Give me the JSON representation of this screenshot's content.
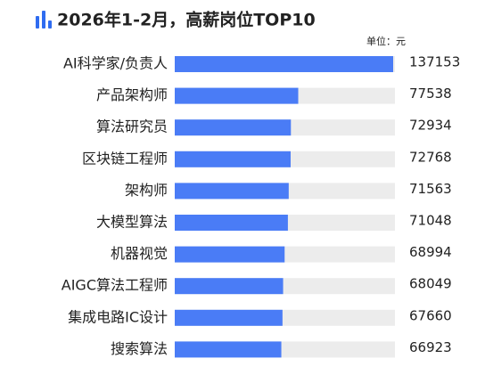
{
  "chart_data": {
    "type": "bar",
    "orientation": "horizontal",
    "title": "2026年1-2月，高薪岗位TOP10",
    "unit_label": "单位：元",
    "categories": [
      "AI科学家/负责人",
      "产品架构师",
      "算法研究员",
      "区块链工程师",
      "架构师",
      "大模型算法",
      "机器视觉",
      "AIGC算法工程师",
      "集成电路IC设计",
      "搜索算法"
    ],
    "values": [
      137153,
      77538,
      72934,
      72768,
      71563,
      71048,
      68994,
      68049,
      67660,
      66923
    ],
    "color": "#4a7cf6",
    "track_color": "#ececec"
  }
}
